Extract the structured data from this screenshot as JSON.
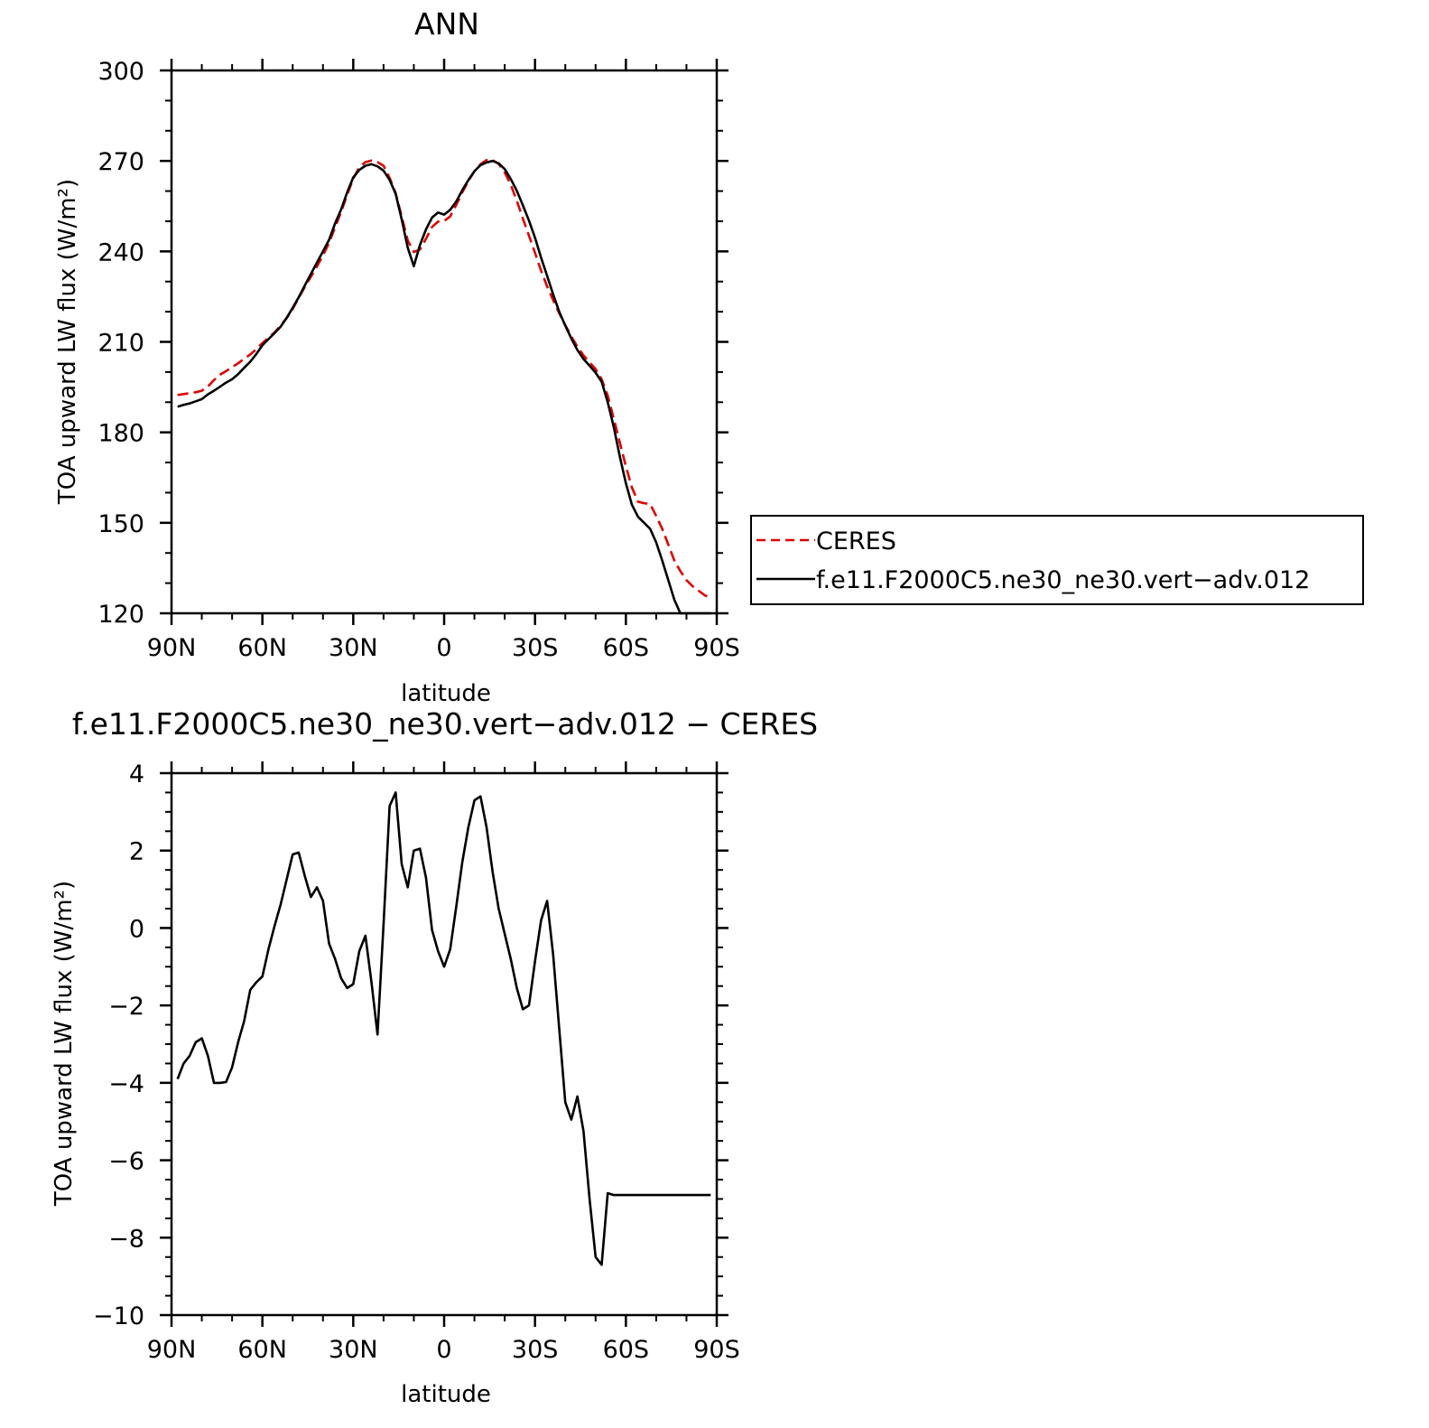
{
  "chart_data": [
    {
      "type": "line",
      "title": "ANN",
      "xlabel": "latitude",
      "ylabel": "TOA upward LW flux (W/m²)",
      "xlim": [
        90,
        -90
      ],
      "ylim": [
        120,
        300
      ],
      "xticks": [
        {
          "value": 90,
          "label": "90N"
        },
        {
          "value": 60,
          "label": "60N"
        },
        {
          "value": 30,
          "label": "30N"
        },
        {
          "value": 0,
          "label": "0"
        },
        {
          "value": -30,
          "label": "30S"
        },
        {
          "value": -60,
          "label": "60S"
        },
        {
          "value": -90,
          "label": "90S"
        }
      ],
      "yticks": [
        {
          "value": 300,
          "label": "300"
        },
        {
          "value": 270,
          "label": "270"
        },
        {
          "value": 240,
          "label": "240"
        },
        {
          "value": 210,
          "label": "210"
        },
        {
          "value": 180,
          "label": "180"
        },
        {
          "value": 150,
          "label": "150"
        },
        {
          "value": 120,
          "label": "120"
        }
      ],
      "grid": false,
      "legend_position": "right, outside plot",
      "series": [
        {
          "name": "CERES",
          "color": "#e00000",
          "dash": "dashed",
          "x": [
            88,
            86,
            84,
            82,
            80,
            78,
            76,
            74,
            72,
            70,
            68,
            66,
            64,
            62,
            60,
            58,
            56,
            54,
            52,
            50,
            48,
            46,
            44,
            42,
            40,
            38,
            36,
            34,
            32,
            30,
            28,
            26,
            24,
            22,
            20,
            18,
            16,
            14,
            12,
            10,
            8,
            6,
            4,
            2,
            0,
            -2,
            -4,
            -6,
            -8,
            -10,
            -12,
            -14,
            -16,
            -18,
            -20,
            -22,
            -24,
            -26,
            -28,
            -30,
            -32,
            -34,
            -36,
            -38,
            -40,
            -42,
            -44,
            -46,
            -48,
            -50,
            -52,
            -54,
            -56,
            -58,
            -60,
            -62,
            -64,
            -66,
            -68,
            -70,
            -72,
            -74,
            -76,
            -78,
            -80,
            -82,
            -84,
            -86,
            -88
          ],
          "values": [
            192.4,
            192.7,
            193.0,
            193.3,
            193.8,
            195.2,
            197.3,
            199.1,
            200.3,
            201.6,
            202.9,
            204.4,
            205.8,
            207.6,
            209.6,
            211.4,
            213.1,
            215.4,
            217.9,
            220.9,
            224.6,
            228.2,
            231.6,
            235.0,
            238.7,
            242.8,
            248.0,
            253.1,
            258.8,
            264.1,
            267.9,
            269.6,
            270.1,
            269.6,
            268.4,
            264.4,
            259.3,
            251.5,
            243.6,
            239.8,
            240.6,
            244.2,
            248.1,
            249.9,
            250.1,
            251.6,
            255.4,
            259.6,
            263.3,
            266.6,
            268.9,
            270.3,
            270.3,
            269.0,
            266.2,
            262.1,
            256.8,
            250.9,
            245.2,
            239.5,
            233.6,
            228.4,
            223.8,
            219.5,
            215.5,
            211.8,
            208.4,
            205.5,
            203.2,
            201.0,
            197.6,
            192.2,
            184.5,
            176.6,
            168.8,
            161.7,
            157.0,
            156.5,
            156.2,
            152.3,
            148.0,
            142.8,
            137.5,
            134.0,
            131.0,
            129.0,
            127.5,
            126.0,
            125.0
          ]
        },
        {
          "name": "f.e11.F2000C5.ne30_ne30.vert−adv.012",
          "color": "#000000",
          "dash": "solid",
          "x": [
            88,
            86,
            84,
            82,
            80,
            78,
            76,
            74,
            72,
            70,
            68,
            66,
            64,
            62,
            60,
            58,
            56,
            54,
            52,
            50,
            48,
            46,
            44,
            42,
            40,
            38,
            36,
            34,
            32,
            30,
            28,
            26,
            24,
            22,
            20,
            18,
            16,
            14,
            12,
            10,
            8,
            6,
            4,
            2,
            0,
            -2,
            -4,
            -6,
            -8,
            -10,
            -12,
            -14,
            -16,
            -18,
            -20,
            -22,
            -24,
            -26,
            -28,
            -30,
            -32,
            -34,
            -36,
            -38,
            -40,
            -42,
            -44,
            -46,
            -48,
            -50,
            -52,
            -54,
            -56,
            -58,
            -60,
            -62,
            -64,
            -66,
            -68,
            -70,
            -72,
            -74,
            -76,
            -78,
            -80,
            -82,
            -84,
            -86,
            -88
          ],
          "values": [
            188.5,
            189.1,
            189.6,
            190.3,
            191.0,
            192.6,
            193.8,
            195.1,
            196.5,
            197.6,
            199.3,
            201.4,
            203.4,
            206.0,
            208.9,
            210.9,
            212.9,
            215.0,
            217.9,
            221.3,
            224.8,
            228.7,
            232.5,
            236.3,
            240.0,
            243.8,
            249.3,
            253.9,
            259.6,
            264.5,
            267.0,
            268.4,
            268.9,
            268.2,
            266.8,
            263.7,
            259.1,
            250.6,
            241.2,
            235.1,
            242.1,
            247.3,
            251.2,
            252.9,
            252.2,
            253.8,
            256.5,
            260.3,
            263.6,
            266.6,
            268.6,
            269.5,
            270.0,
            269.2,
            267.3,
            264.0,
            260.1,
            255.3,
            250.2,
            244.5,
            237.9,
            231.9,
            225.7,
            220.0,
            215.4,
            211.1,
            207.3,
            204.3,
            202.1,
            199.8,
            196.8,
            190.0,
            181.8,
            172.0,
            163.2,
            156.0,
            152.0,
            150.0,
            148.0,
            143.5,
            137.5,
            131.0,
            124.5,
            120.0,
            120.0,
            120.0,
            120.0,
            120.0,
            120.0
          ]
        }
      ]
    },
    {
      "type": "line",
      "title": "f.e11.F2000C5.ne30_ne30.vert−adv.012 − CERES",
      "xlabel": "latitude",
      "ylabel": "TOA upward LW flux (W/m²)",
      "xlim": [
        90,
        -90
      ],
      "ylim": [
        -10,
        4
      ],
      "xticks": [
        {
          "value": 90,
          "label": "90N"
        },
        {
          "value": 60,
          "label": "60N"
        },
        {
          "value": 30,
          "label": "30N"
        },
        {
          "value": 0,
          "label": "0"
        },
        {
          "value": -30,
          "label": "30S"
        },
        {
          "value": -60,
          "label": "60S"
        },
        {
          "value": -90,
          "label": "90S"
        }
      ],
      "yticks": [
        {
          "value": 4,
          "label": "4"
        },
        {
          "value": 2,
          "label": "2"
        },
        {
          "value": 0,
          "label": "0"
        },
        {
          "value": -2,
          "label": "−2"
        },
        {
          "value": -4,
          "label": "−4"
        },
        {
          "value": -6,
          "label": "−6"
        },
        {
          "value": -8,
          "label": "−8"
        },
        {
          "value": -10,
          "label": "−10"
        }
      ],
      "grid": false,
      "series": [
        {
          "color": "#000000",
          "dash": "solid",
          "x": [
            88,
            86,
            84,
            82,
            80,
            78,
            76,
            74,
            72,
            70,
            68,
            66,
            64,
            62,
            60,
            58,
            56,
            54,
            52,
            50,
            48,
            46,
            44,
            42,
            40,
            38,
            36,
            34,
            32,
            30,
            28,
            26,
            24,
            22,
            20,
            18,
            16,
            14,
            12,
            10,
            8,
            6,
            4,
            2,
            0,
            -2,
            -4,
            -6,
            -8,
            -10,
            -12,
            -14,
            -16,
            -18,
            -20,
            -22,
            -24,
            -26,
            -28,
            -30,
            -32,
            -34,
            -36,
            -38,
            -40,
            -42,
            -44,
            -46,
            -48,
            -50,
            -52,
            -54,
            -56,
            -58,
            -60,
            -62,
            -64,
            -66,
            -68,
            -70,
            -72,
            -74,
            -76,
            -78,
            -80,
            -82,
            -84,
            -86,
            -88
          ],
          "values": [
            -3.9,
            -3.5,
            -3.3,
            -2.95,
            -2.85,
            -3.3,
            -4.0,
            -4.0,
            -3.98,
            -3.6,
            -2.95,
            -2.4,
            -1.6,
            -1.4,
            -1.25,
            -0.55,
            0.05,
            0.6,
            1.25,
            1.9,
            1.95,
            1.35,
            0.8,
            1.05,
            0.7,
            -0.4,
            -0.8,
            -1.3,
            -1.55,
            -1.45,
            -0.6,
            -0.2,
            -1.4,
            -2.75,
            0.1,
            3.15,
            3.5,
            1.65,
            1.05,
            2.0,
            2.05,
            1.3,
            -0.05,
            -0.6,
            -1.0,
            -0.55,
            0.55,
            1.7,
            2.6,
            3.3,
            3.4,
            2.6,
            1.45,
            0.5,
            -0.15,
            -0.8,
            -1.55,
            -2.1,
            -2.0,
            -0.85,
            0.2,
            0.7,
            -0.7,
            -2.6,
            -4.5,
            -4.95,
            -4.35,
            -5.25,
            -7.0,
            -8.5,
            -8.7,
            -6.85,
            -6.9,
            -6.9,
            -6.9,
            -6.9,
            -6.9,
            -6.9,
            -6.9,
            -6.9,
            -6.9,
            -6.9,
            -6.9,
            -6.9,
            -6.9,
            -6.9,
            -6.9,
            -6.9,
            -6.9
          ]
        }
      ]
    }
  ]
}
